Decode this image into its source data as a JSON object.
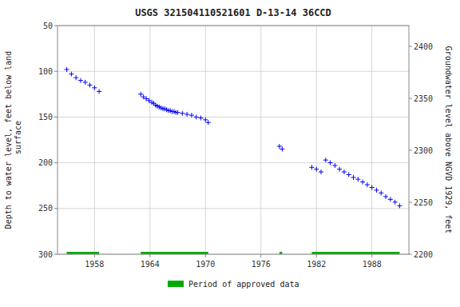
{
  "chart_data": {
    "type": "scatter",
    "title": "USGS 321504110521601 D-13-14 36CCD",
    "y_label": "Depth to water level, feet below land\n surface",
    "y2_label": "Groundwater level above NGVD 1929, feet",
    "xlim": [
      1954,
      1992
    ],
    "xticks": [
      1958,
      1964,
      1970,
      1976,
      1982,
      1988
    ],
    "ylim": [
      300,
      50
    ],
    "yticks": [
      50,
      100,
      150,
      200,
      250,
      300
    ],
    "y2lim": [
      2200,
      2420
    ],
    "y2ticks": [
      2200,
      2250,
      2300,
      2350,
      2400
    ],
    "grid": true,
    "legend": "bottom",
    "background_color": "#ffffff",
    "grid_color": "#cccccc",
    "series": [
      {
        "color": "#0000FF",
        "marker": "plus",
        "x": [
          1955.0,
          1955.5,
          1956.0,
          1956.5,
          1957.0,
          1957.5,
          1958.0,
          1958.5,
          1963.0,
          1963.3,
          1963.6,
          1963.9,
          1964.2,
          1964.4,
          1964.6,
          1964.8,
          1965.0,
          1965.2,
          1965.4,
          1965.6,
          1965.8,
          1966.0,
          1966.2,
          1966.4,
          1966.6,
          1966.8,
          1967.0,
          1967.5,
          1968.0,
          1968.5,
          1969.0,
          1969.5,
          1970.0,
          1970.3,
          1978.0,
          1978.3,
          1981.5,
          1982.0,
          1982.5,
          1983.0,
          1983.5,
          1984.0,
          1984.5,
          1985.0,
          1985.5,
          1986.0,
          1986.5,
          1987.0,
          1987.5,
          1988.0,
          1988.5,
          1989.0,
          1989.5,
          1990.0,
          1990.5,
          1991.0
        ],
        "values": [
          98,
          103,
          107,
          110,
          112,
          115,
          118,
          122,
          125,
          128,
          130,
          132,
          134,
          135,
          137,
          138,
          139,
          140,
          141,
          141,
          142,
          143,
          143,
          144,
          144,
          145,
          145,
          146,
          147,
          148,
          150,
          151,
          153,
          156,
          182,
          185,
          205,
          207,
          210,
          197,
          200,
          203,
          207,
          210,
          213,
          216,
          218,
          221,
          224,
          227,
          230,
          233,
          237,
          240,
          243,
          247
        ]
      },
      {
        "name": "Period of approved data",
        "type": "segments",
        "color": "#00AA00",
        "level": 300,
        "segments": [
          [
            1955.0,
            1958.5
          ],
          [
            1963.0,
            1970.3
          ],
          [
            1978.0,
            1978.3
          ],
          [
            1981.5,
            1991.0
          ]
        ]
      }
    ]
  }
}
